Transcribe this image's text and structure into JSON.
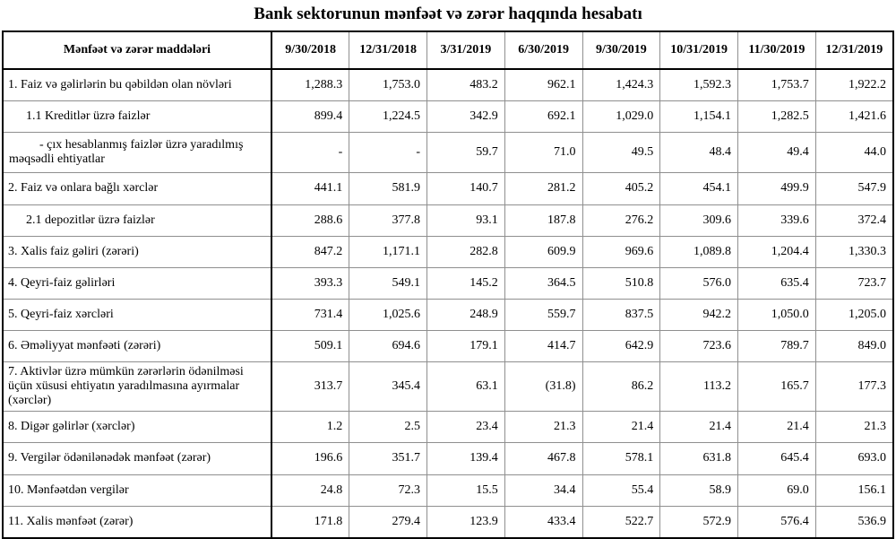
{
  "chart_data": {
    "type": "table",
    "title": "Bank sektorunun mənfəət və zərər haqqında hesabatı",
    "columns": [
      "Mənfəət və zərər maddələri",
      "9/30/2018",
      "12/31/2018",
      "3/31/2019",
      "6/30/2019",
      "9/30/2019",
      "10/31/2019",
      "11/30/2019",
      "12/31/2019"
    ],
    "rows": [
      {
        "label": "1. Faiz və gəlirlərin bu qəbildən olan növləri",
        "indent": 0,
        "values": [
          "1,288.3",
          "1,753.0",
          "483.2",
          "962.1",
          "1,424.3",
          "1,592.3",
          "1,753.7",
          "1,922.2"
        ]
      },
      {
        "label": "1.1 Kreditlər üzrə faizlər",
        "indent": 1,
        "values": [
          "899.4",
          "1,224.5",
          "342.9",
          "692.1",
          "1,029.0",
          "1,154.1",
          "1,282.5",
          "1,421.6"
        ]
      },
      {
        "label": "- çıx hesablanmış faizlər üzrə yaradılmış məqsədli ehtiyatlar",
        "indent": 2,
        "values": [
          "-",
          "-",
          "59.7",
          "71.0",
          "49.5",
          "48.4",
          "49.4",
          "44.0"
        ]
      },
      {
        "label": "2. Faiz və onlara bağlı xərclər",
        "indent": 0,
        "values": [
          "441.1",
          "581.9",
          "140.7",
          "281.2",
          "405.2",
          "454.1",
          "499.9",
          "547.9"
        ]
      },
      {
        "label": "2.1 depozitlər üzrə faizlər",
        "indent": 1,
        "values": [
          "288.6",
          "377.8",
          "93.1",
          "187.8",
          "276.2",
          "309.6",
          "339.6",
          "372.4"
        ]
      },
      {
        "label": "3. Xalis faiz gəliri (zərəri)",
        "indent": 0,
        "values": [
          "847.2",
          "1,171.1",
          "282.8",
          "609.9",
          "969.6",
          "1,089.8",
          "1,204.4",
          "1,330.3"
        ]
      },
      {
        "label": "4. Qeyri-faiz gəlirləri",
        "indent": 0,
        "values": [
          "393.3",
          "549.1",
          "145.2",
          "364.5",
          "510.8",
          "576.0",
          "635.4",
          "723.7"
        ]
      },
      {
        "label": "5. Qeyri-faiz xərcləri",
        "indent": 0,
        "values": [
          "731.4",
          "1,025.6",
          "248.9",
          "559.7",
          "837.5",
          "942.2",
          "1,050.0",
          "1,205.0"
        ]
      },
      {
        "label": "6. Əməliyyat mənfəəti (zərəri)",
        "indent": 0,
        "values": [
          "509.1",
          "694.6",
          "179.1",
          "414.7",
          "642.9",
          "723.6",
          "789.7",
          "849.0"
        ]
      },
      {
        "label": "7. Aktivlər üzrə mümkün zərərlərin ödənilməsi üçün xüsusi ehtiyatın yaradılmasına ayırmalar (xərclər)",
        "indent": 0,
        "values": [
          "313.7",
          "345.4",
          "63.1",
          "(31.8)",
          "86.2",
          "113.2",
          "165.7",
          "177.3"
        ]
      },
      {
        "label": "8. Digər gəlirlər (xərclər)",
        "indent": 0,
        "values": [
          "1.2",
          "2.5",
          "23.4",
          "21.3",
          "21.4",
          "21.4",
          "21.4",
          "21.3"
        ]
      },
      {
        "label": "9. Vergilər ödənilənədək mənfəət (zərər)",
        "indent": 0,
        "values": [
          "196.6",
          "351.7",
          "139.4",
          "467.8",
          "578.1",
          "631.8",
          "645.4",
          "693.0"
        ]
      },
      {
        "label": "10. Mənfəətdən vergilər",
        "indent": 0,
        "values": [
          "24.8",
          "72.3",
          "15.5",
          "34.4",
          "55.4",
          "58.9",
          "69.0",
          "156.1"
        ]
      },
      {
        "label": "11. Xalis mənfəət (zərər)",
        "indent": 0,
        "values": [
          "171.8",
          "279.4",
          "123.9",
          "433.4",
          "522.7",
          "572.9",
          "576.4",
          "536.9"
        ]
      }
    ],
    "layout": {
      "grid": "on",
      "border_color": "#000000",
      "gridline_color": "#8f8f8f",
      "text_color": "#000000",
      "background_color": "#ffffff"
    }
  }
}
